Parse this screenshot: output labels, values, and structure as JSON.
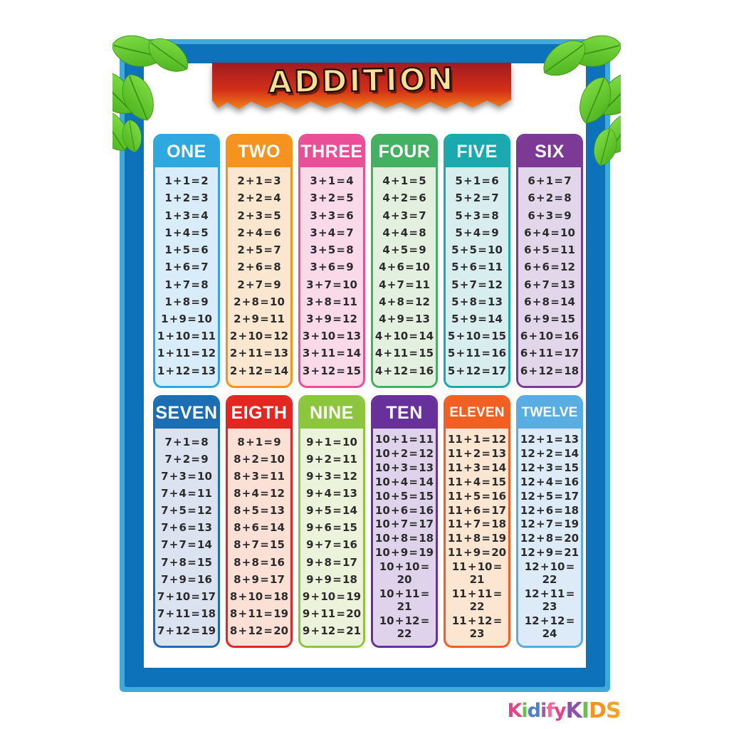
{
  "poster": {
    "title": "ADDITION",
    "title_color": "#fbe096",
    "banner_colors": {
      "top": "#9f1b20",
      "mid": "#d42f17",
      "bottom": "#f6911a"
    },
    "frame": {
      "outer_color": "#3fa9dc",
      "inner_color": "#0d72b9",
      "background": "#ffffff"
    },
    "header_text_color": "#ffffff"
  },
  "cards": [
    {
      "label": "ONE",
      "header_color": "#2fa8e0",
      "body_color": "#d8ecf9",
      "equations": [
        "1 + 1 = 2",
        "1 + 2 = 3",
        "1 + 3 = 4",
        "1 + 4 = 5",
        "1 + 5 = 6",
        "1 + 6 = 7",
        "1 + 7 = 8",
        "1 + 8 = 9",
        "1 + 9 = 10",
        "1 + 10 = 11",
        "1 + 11 = 12",
        "1 + 12 = 13"
      ]
    },
    {
      "label": "TWO",
      "header_color": "#f6921e",
      "body_color": "#fbe7d0",
      "equations": [
        "2 + 1 = 3",
        "2 + 2 = 4",
        "2 + 3 = 5",
        "2 + 4 = 6",
        "2 + 5 = 7",
        "2 + 6 = 8",
        "2 + 7 = 9",
        "2 + 8 = 10",
        "2 + 9 = 11",
        "2 + 10 = 12",
        "2 + 11 = 13",
        "2 + 12 = 14"
      ]
    },
    {
      "label": "THREE",
      "header_color": "#ea4e96",
      "body_color": "#fad9e9",
      "equations": [
        "3 + 1 = 4",
        "3 + 2 = 5",
        "3 + 3 = 6",
        "3 + 4 = 7",
        "3 + 5 = 8",
        "3 + 6 = 9",
        "3 + 7 = 10",
        "3 + 8 = 11",
        "3 + 9 = 12",
        "3 + 10 = 13",
        "3 + 11 = 14",
        "3 + 12 = 15"
      ]
    },
    {
      "label": "FOUR",
      "header_color": "#44b162",
      "body_color": "#e3efdf",
      "equations": [
        "4 + 1 = 5",
        "4 + 2 = 6",
        "4 + 3 = 7",
        "4 + 4 = 8",
        "4 + 5 = 9",
        "4 + 6 = 10",
        "4 + 7 = 11",
        "4 + 8 = 12",
        "4 + 9 = 13",
        "4 + 10 = 14",
        "4 + 11 = 15",
        "4 + 12 = 16"
      ]
    },
    {
      "label": "FIVE",
      "header_color": "#19a9ae",
      "body_color": "#d8eded",
      "equations": [
        "5 + 1 = 6",
        "5 + 2 = 7",
        "5 + 3 = 8",
        "5 + 4 = 9",
        "5 + 5 = 10",
        "5 + 6 = 11",
        "5 + 7 = 12",
        "5 + 8 = 13",
        "5 + 9 = 14",
        "5 + 10 = 15",
        "5 + 11 = 16",
        "5 + 12 = 17"
      ]
    },
    {
      "label": "SIX",
      "header_color": "#7c3a96",
      "body_color": "#e2d6eb",
      "equations": [
        "6 + 1 = 7",
        "6 + 2 = 8",
        "6 + 3 = 9",
        "6 + 4 = 10",
        "6 + 5 = 11",
        "6 + 6 = 12",
        "6 + 7 = 13",
        "6 + 8 = 14",
        "6 + 9 = 15",
        "6 + 10 = 16",
        "6 + 11 = 17",
        "6 + 12 = 18"
      ]
    },
    {
      "label": "SEVEN",
      "header_color": "#1c6eb4",
      "body_color": "#dbe3f1",
      "equations": [
        "7 + 1 = 8",
        "7 + 2 = 9",
        "7 + 3 = 10",
        "7 + 4 = 11",
        "7 + 5 = 12",
        "7 + 6 = 13",
        "7 + 7 = 14",
        "7 + 8 = 15",
        "7 + 9 = 16",
        "7 + 10 = 17",
        "7 + 11 = 18",
        "7 + 12 = 19"
      ]
    },
    {
      "label": "EIGTH",
      "header_color": "#e52620",
      "body_color": "#fcdfd5",
      "equations": [
        "8 + 1 = 9",
        "8 + 2 = 10",
        "8 + 3 = 11",
        "8 + 4 = 12",
        "8 + 5 = 13",
        "8 + 6 = 14",
        "8 + 7 = 15",
        "8 + 8 = 16",
        "8 + 9 = 17",
        "8 + 10 = 18",
        "8 + 11 = 19",
        "8 + 12 = 20"
      ]
    },
    {
      "label": "NINE",
      "header_color": "#8cc63e",
      "body_color": "#ebf3da",
      "equations": [
        "9 + 1 = 10",
        "9 + 2 = 11",
        "9 + 3 = 12",
        "9 + 4 = 13",
        "9 + 5 = 14",
        "9 + 6 = 15",
        "9 + 7 = 16",
        "9 + 8 = 17",
        "9 + 9 = 18",
        "9 + 10 = 19",
        "9 + 11 = 20",
        "9 + 12 = 21"
      ]
    },
    {
      "label": "TEN",
      "header_color": "#68309b",
      "body_color": "#ded3eb",
      "equations": [
        "10 + 1 = 11",
        "10 + 2 = 12",
        "10 + 3 = 13",
        "10 + 4 = 14",
        "10 + 5 = 15",
        "10 + 6 = 16",
        "10 + 7 = 17",
        "10 + 8 = 18",
        "10 + 9 = 19",
        "10 + 10 = 20",
        "10 + 11 = 21",
        "10 + 12 = 22"
      ]
    },
    {
      "label": "ELEVEN",
      "header_color": "#f15f22",
      "body_color": "#fce5d1",
      "equations": [
        "11 + 1 = 12",
        "11 + 2 = 13",
        "11 + 3 = 14",
        "11 + 4 = 15",
        "11 + 5 = 16",
        "11 + 6 = 17",
        "11 + 7 = 18",
        "11 + 8 = 19",
        "11 + 9 = 20",
        "11 + 10 = 21",
        "11 + 11 = 22",
        "11 + 12 = 23"
      ]
    },
    {
      "label": "TWELVE",
      "header_color": "#58ade2",
      "body_color": "#dcebf7",
      "equations": [
        "12 + 1 = 13",
        "12 + 2 = 14",
        "12 + 3 = 15",
        "12 + 4 = 16",
        "12 + 5 = 17",
        "12 + 6 = 18",
        "12 + 7 = 19",
        "12 + 8 = 20",
        "12 + 9 = 21",
        "12 + 10 = 22",
        "12 + 11 = 23",
        "12 + 12 = 24"
      ]
    }
  ],
  "logo": {
    "text": "KidifyKIDS",
    "letters": [
      {
        "ch": "K",
        "color": "#e8418c",
        "caps": false
      },
      {
        "ch": "i",
        "color": "#6abf4b",
        "caps": false
      },
      {
        "ch": "d",
        "color": "#4a7fc9",
        "caps": false
      },
      {
        "ch": "i",
        "color": "#9b59b6",
        "caps": false
      },
      {
        "ch": "f",
        "color": "#f2699c",
        "caps": false
      },
      {
        "ch": "y",
        "color": "#e8418c",
        "caps": false
      },
      {
        "ch": "K",
        "color": "#8a52a8",
        "caps": true
      },
      {
        "ch": "I",
        "color": "#6abf4b",
        "caps": true
      },
      {
        "ch": "D",
        "color": "#f7941d",
        "caps": true
      },
      {
        "ch": "S",
        "color": "#f6a21d",
        "caps": true
      }
    ]
  }
}
